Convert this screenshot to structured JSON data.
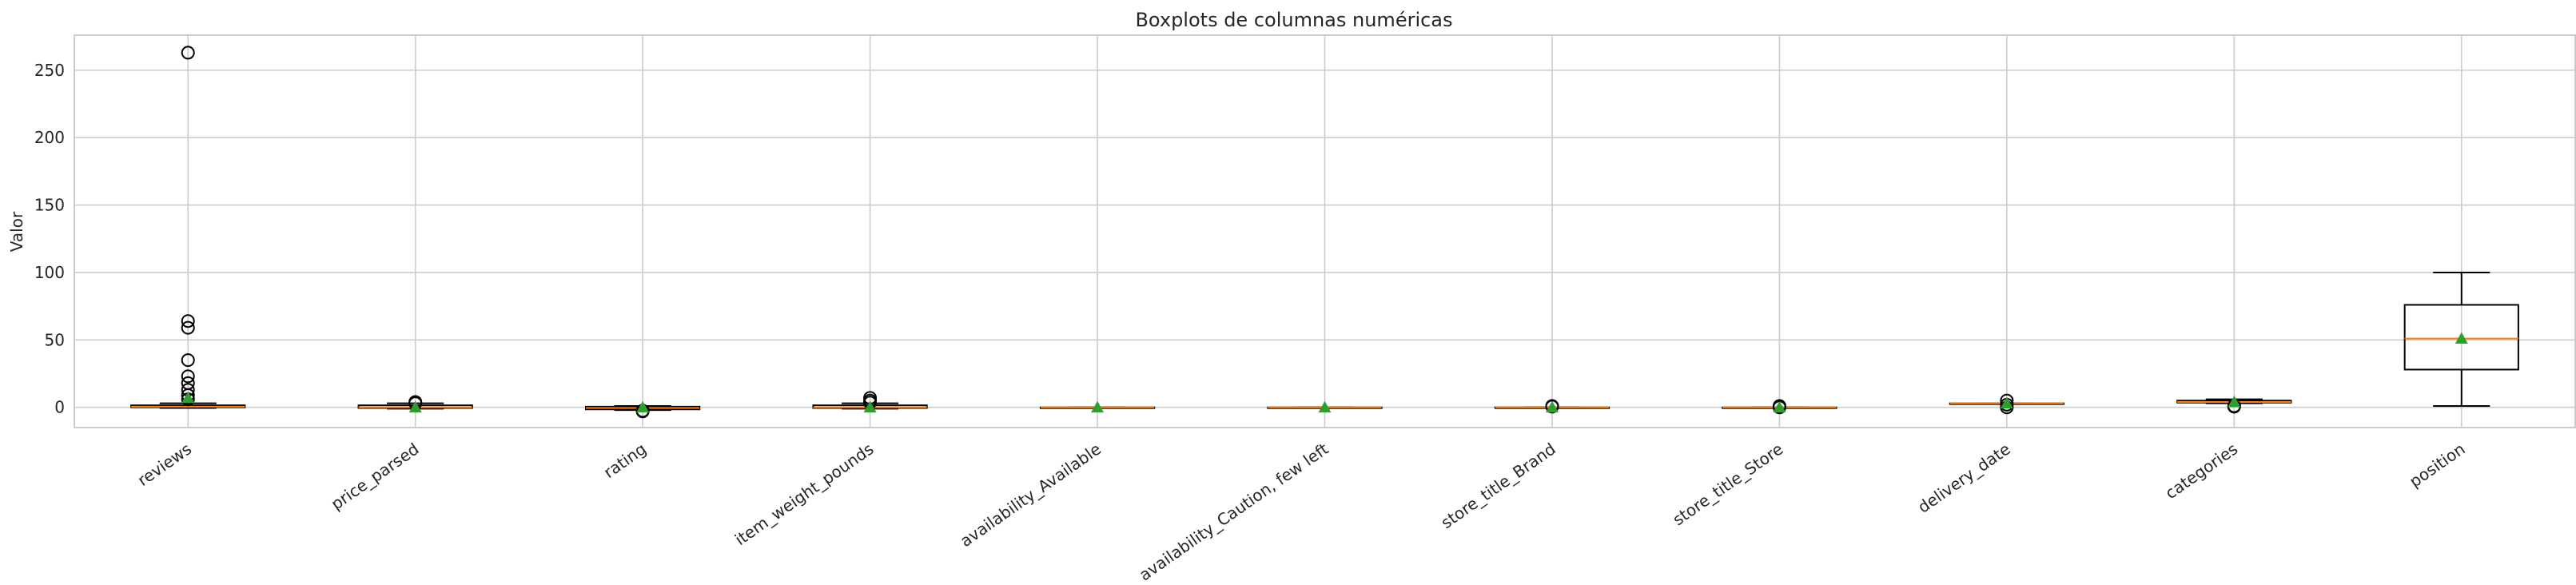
{
  "chart_data": {
    "type": "boxplot",
    "title": "Boxplots de columnas numéricas",
    "xlabel": "",
    "ylabel": "Valor",
    "ylim": [
      -15,
      276
    ],
    "yticks": [
      0,
      50,
      100,
      150,
      200,
      250
    ],
    "grid": true,
    "colors": {
      "box": "#000000",
      "median": "#ff7f0e",
      "mean_marker": "#2ca02c",
      "grid": "#cccccc"
    },
    "categories": [
      "reviews",
      "price_parsed",
      "rating",
      "item_weight_pounds",
      "availability_Available",
      "availability_Caution, few left",
      "store_title_Brand",
      "store_title_Store",
      "delivery_date",
      "categories",
      "position"
    ],
    "boxes": [
      {
        "q1": 0,
        "median": 0.5,
        "q3": 1.5,
        "whisker_low": -0.5,
        "whisker_high": 3,
        "mean": 7,
        "outliers": [
          263,
          64,
          59,
          35,
          23,
          18,
          13,
          9,
          6
        ]
      },
      {
        "q1": -0.5,
        "median": 0,
        "q3": 1.5,
        "whisker_low": -1,
        "whisker_high": 3,
        "mean": 0,
        "outliers": [
          4,
          3.5,
          3
        ]
      },
      {
        "q1": -1.5,
        "median": -0.5,
        "q3": 0.5,
        "whisker_low": -2,
        "whisker_high": 1,
        "mean": 0,
        "outliers": [
          -2.5,
          -3
        ]
      },
      {
        "q1": -0.5,
        "median": 0,
        "q3": 1.5,
        "whisker_low": -1,
        "whisker_high": 3,
        "mean": 0,
        "outliers": [
          7,
          5,
          3.5
        ]
      },
      {
        "q1": 0,
        "median": 0,
        "q3": 0,
        "whisker_low": 0,
        "whisker_high": 0,
        "mean": 0,
        "outliers": []
      },
      {
        "q1": 0,
        "median": 0,
        "q3": 0,
        "whisker_low": 0,
        "whisker_high": 0,
        "mean": 0,
        "outliers": []
      },
      {
        "q1": 0,
        "median": 0,
        "q3": 0,
        "whisker_low": 0,
        "whisker_high": 0,
        "mean": 0,
        "outliers": [
          1,
          0.5
        ]
      },
      {
        "q1": 0,
        "median": 0,
        "q3": 0,
        "whisker_low": 0,
        "whisker_high": 0,
        "mean": 0,
        "outliers": [
          1,
          0
        ]
      },
      {
        "q1": 3,
        "median": 3,
        "q3": 3,
        "whisker_low": 3,
        "whisker_high": 3,
        "mean": 3,
        "outliers": [
          5,
          2,
          0
        ]
      },
      {
        "q1": 3.5,
        "median": 4,
        "q3": 5,
        "whisker_low": 3,
        "whisker_high": 6,
        "mean": 4,
        "outliers": [
          1,
          0.5
        ]
      },
      {
        "q1": 28,
        "median": 51,
        "q3": 76,
        "whisker_low": 1,
        "whisker_high": 100,
        "mean": 51,
        "outliers": []
      }
    ]
  }
}
